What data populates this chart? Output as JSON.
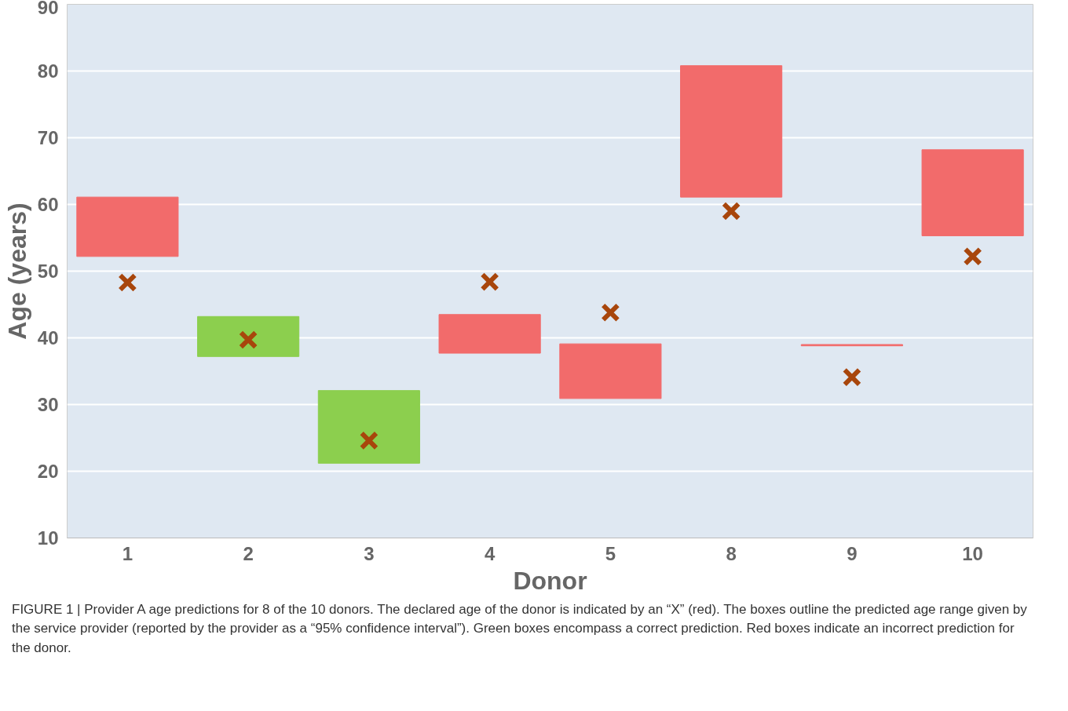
{
  "chart_data": {
    "type": "bar",
    "xlabel": "Donor",
    "ylabel": "Age (years)",
    "categories": [
      "1",
      "2",
      "3",
      "4",
      "5",
      "8",
      "9",
      "10"
    ],
    "ylim": [
      10,
      90
    ],
    "yticks": [
      10,
      20,
      30,
      40,
      50,
      60,
      70,
      80,
      90
    ],
    "grid": "y",
    "series": [
      {
        "base": [
          52.2,
          37.2,
          21.2,
          37.7,
          30.9,
          61.1,
          38.8,
          55.3
        ],
        "values": [
          8.9,
          6.0,
          10.9,
          5.8,
          8.2,
          19.7,
          0.2,
          12.9
        ],
        "colors": [
          "#f26b6b",
          "#8ccf4e",
          "#8ccf4e",
          "#f26b6b",
          "#f26b6b",
          "#f26b6b",
          "#f26b6b",
          "#f26b6b"
        ]
      },
      {
        "type": "scatter",
        "marker": "cross",
        "color": "#a8460c",
        "x": [
          "1",
          "2",
          "3",
          "4",
          "5",
          "8",
          "9",
          "10"
        ],
        "values": [
          48.3,
          39.7,
          24.6,
          48.4,
          43.8,
          59.0,
          34.1,
          52.2
        ]
      }
    ],
    "annotations": [
      "FIGURE 1 | Provider A age predictions for 8 of the 10 donors. The declared age of the donor is indicated by an “X” (red). The boxes outline the predicted age range given by the service provider (reported by the provider as a “95% confidence interval”). Green boxes encompass a correct prediction. Red boxes indicate an incorrect prediction for the donor."
    ]
  }
}
